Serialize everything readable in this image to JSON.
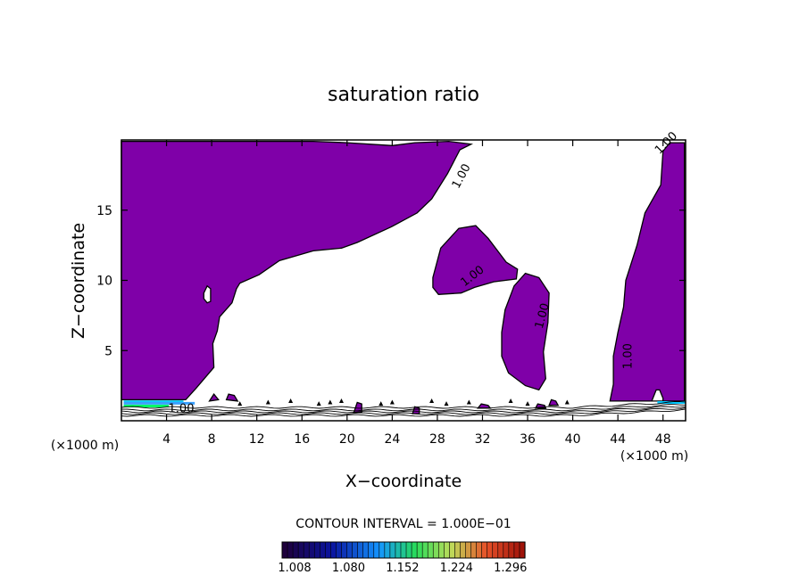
{
  "chart_data": {
    "type": "heatmap",
    "title": "saturation ratio",
    "xlabel": "X−coordinate",
    "ylabel": "Z−coordinate",
    "x_unit_left": "(×1000 m)",
    "x_unit_right": "(×1000 m)",
    "xlim": [
      0,
      50
    ],
    "ylim": [
      0,
      20
    ],
    "x_ticks": [
      4,
      8,
      12,
      16,
      20,
      24,
      28,
      32,
      36,
      40,
      44,
      48
    ],
    "y_ticks": [
      5,
      10,
      15
    ],
    "contour_labels": [
      "1.00",
      "1.00",
      "1.00",
      "1.00",
      "1.00",
      "1.00"
    ],
    "contour_interval_text": "CONTOUR INTERVAL = 1.000E−01",
    "colorbar": {
      "tick_labels": [
        "1.008",
        "1.080",
        "1.152",
        "1.224",
        "1.296"
      ],
      "min": 1.008,
      "max": 1.332
    },
    "fill_color": "#7f00a8",
    "regions": [
      {
        "name": "upper-left-saturated",
        "points": [
          [
            0,
            19.9
          ],
          [
            17,
            19.9
          ],
          [
            20,
            19.8
          ],
          [
            24,
            19.6
          ],
          [
            26,
            19.8
          ],
          [
            29,
            19.9
          ],
          [
            31,
            19.7
          ],
          [
            30,
            19.3
          ],
          [
            28.9,
            17.6
          ],
          [
            27.5,
            15.8
          ],
          [
            26.2,
            14.8
          ],
          [
            23.9,
            13.8
          ],
          [
            20.9,
            12.7
          ],
          [
            19.5,
            12.3
          ],
          [
            17,
            12.1
          ],
          [
            14,
            11.4
          ],
          [
            12.2,
            10.4
          ],
          [
            10.5,
            9.8
          ],
          [
            10.2,
            9.4
          ],
          [
            9.8,
            8.4
          ],
          [
            8.7,
            7.4
          ],
          [
            8.5,
            6.4
          ],
          [
            8.1,
            5.5
          ],
          [
            8.2,
            3.8
          ],
          [
            6.6,
            2.3
          ],
          [
            5.7,
            1.5
          ],
          [
            0,
            1.5
          ]
        ]
      },
      {
        "name": "upper-center-blob",
        "points": [
          [
            27.6,
            10.2
          ],
          [
            28.3,
            12.3
          ],
          [
            29.9,
            13.7
          ],
          [
            31.4,
            13.9
          ],
          [
            32.5,
            13.0
          ],
          [
            34.1,
            11.3
          ],
          [
            35.1,
            10.8
          ],
          [
            35.0,
            10.1
          ],
          [
            33.0,
            9.9
          ],
          [
            31.3,
            9.5
          ],
          [
            30.1,
            9.1
          ],
          [
            28.1,
            9.0
          ],
          [
            27.6,
            9.5
          ]
        ]
      },
      {
        "name": "middle-blob",
        "points": [
          [
            33.7,
            6.3
          ],
          [
            34.0,
            7.9
          ],
          [
            34.8,
            9.6
          ],
          [
            35.8,
            10.5
          ],
          [
            37.0,
            10.2
          ],
          [
            37.9,
            9.1
          ],
          [
            37.8,
            7.0
          ],
          [
            37.4,
            4.9
          ],
          [
            37.6,
            3.0
          ],
          [
            37.0,
            2.2
          ],
          [
            35.8,
            2.5
          ],
          [
            34.3,
            3.4
          ],
          [
            33.7,
            4.6
          ]
        ]
      },
      {
        "name": "right-column",
        "points": [
          [
            49.9,
            19.8
          ],
          [
            48.6,
            19.8
          ],
          [
            48.0,
            19.2
          ],
          [
            47.8,
            16.8
          ],
          [
            46.4,
            14.8
          ],
          [
            45.7,
            12.5
          ],
          [
            44.7,
            10.0
          ],
          [
            44.5,
            8.1
          ],
          [
            44.0,
            6.3
          ],
          [
            43.6,
            4.6
          ],
          [
            43.6,
            2.6
          ],
          [
            43.3,
            1.4
          ],
          [
            49.9,
            1.4
          ]
        ]
      },
      {
        "name": "surface-blob-1",
        "points": [
          [
            7.8,
            1.4
          ],
          [
            8.2,
            1.9
          ],
          [
            8.6,
            1.5
          ]
        ]
      },
      {
        "name": "surface-blob-2",
        "points": [
          [
            9.3,
            1.5
          ],
          [
            9.5,
            1.9
          ],
          [
            10.0,
            1.8
          ],
          [
            10.3,
            1.4
          ]
        ]
      },
      {
        "name": "surface-blob-3",
        "points": [
          [
            20.6,
            0.6
          ],
          [
            20.9,
            1.3
          ],
          [
            21.3,
            1.2
          ],
          [
            21.3,
            0.6
          ]
        ]
      },
      {
        "name": "surface-blob-4",
        "points": [
          [
            25.8,
            0.5
          ],
          [
            26.0,
            1.0
          ],
          [
            26.4,
            0.9
          ],
          [
            26.4,
            0.5
          ]
        ]
      },
      {
        "name": "surface-blob-5",
        "points": [
          [
            31.6,
            0.9
          ],
          [
            31.9,
            1.2
          ],
          [
            32.5,
            1.1
          ],
          [
            32.7,
            0.9
          ]
        ]
      },
      {
        "name": "surface-blob-6",
        "points": [
          [
            36.7,
            0.9
          ],
          [
            36.9,
            1.2
          ],
          [
            37.5,
            1.1
          ],
          [
            37.6,
            0.9
          ]
        ]
      },
      {
        "name": "surface-blob-7",
        "points": [
          [
            37.9,
            1.1
          ],
          [
            38.1,
            1.5
          ],
          [
            38.5,
            1.4
          ],
          [
            38.7,
            1.1
          ]
        ]
      }
    ],
    "holes": [
      {
        "name": "left-hole",
        "points": [
          [
            7.3,
            9.1
          ],
          [
            7.6,
            9.6
          ],
          [
            7.9,
            9.4
          ],
          [
            7.9,
            8.5
          ],
          [
            7.6,
            8.4
          ],
          [
            7.3,
            8.7
          ]
        ]
      },
      {
        "name": "right-bottom-hole",
        "points": [
          [
            47.0,
            1.4
          ],
          [
            47.4,
            2.2
          ],
          [
            47.7,
            2.2
          ],
          [
            48.0,
            1.6
          ],
          [
            48.0,
            1.4
          ]
        ]
      }
    ]
  }
}
